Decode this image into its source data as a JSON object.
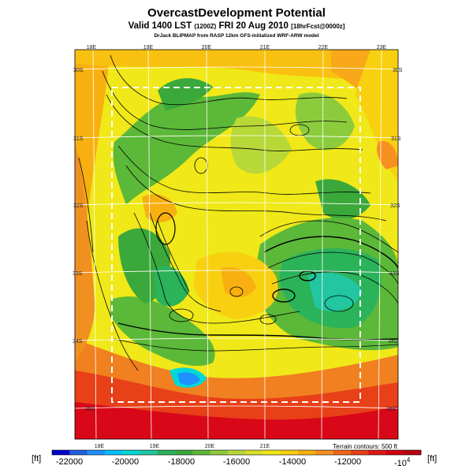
{
  "header": {
    "title": "OvercastDevelopment Potential",
    "valid_main": "Valid 1400 LST",
    "valid_utc": "(1200Z)",
    "valid_date": "FRI 20 Aug 2010",
    "forecast": "[18hrFcst@0000z]",
    "credit": "DrJack BLIPMAP from RASP 12km GFS-initialized WRF-ARW model"
  },
  "map": {
    "lon_labels": [
      "18E",
      "19E",
      "20E",
      "21E",
      "22E",
      "23E"
    ],
    "lat_labels": [
      "30S",
      "31S",
      "32S",
      "33S",
      "34S",
      "35S"
    ],
    "terrain_note": "Terrain contours: 500 ft"
  },
  "colorbar": {
    "unit_left": "[ft]",
    "unit_right": "[ft]",
    "ticks": [
      "-22000",
      "-20000",
      "-18000",
      "-16000",
      "-14000",
      "-12000"
    ],
    "multiplier_base": "-10",
    "multiplier_exp": "4",
    "colors": [
      "#0000cc",
      "#1f5fe0",
      "#1e90ff",
      "#00bfff",
      "#00d8d8",
      "#22c6a0",
      "#2bb35a",
      "#3aa83a",
      "#5cb838",
      "#8ccc3c",
      "#b8d838",
      "#d8e028",
      "#f0e818",
      "#f8d010",
      "#f8b010",
      "#f89020",
      "#f06818",
      "#e84018",
      "#e01818",
      "#d00010",
      "#b80010"
    ]
  }
}
